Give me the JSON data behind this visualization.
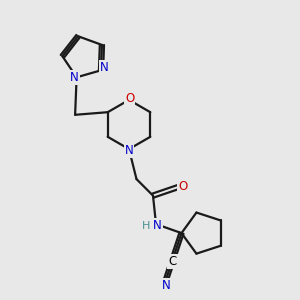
{
  "bg_color": "#e8e8e8",
  "atom_colors": {
    "C": "#000000",
    "N": "#0000cc",
    "O": "#cc0000",
    "H": "#4a9090"
  },
  "bond_color": "#1a1a1a",
  "bond_width": 1.6,
  "figsize": [
    3.0,
    3.0
  ],
  "dpi": 100
}
